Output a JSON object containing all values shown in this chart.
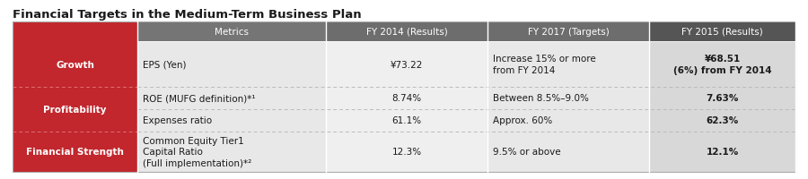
{
  "title": "Financial Targets in the Medium-Term Business Plan",
  "title_fontsize": 9.5,
  "bg_color": "#ffffff",
  "red_color": "#c1272d",
  "col1_header_color": "#757575",
  "col2_header_color": "#6d6d6d",
  "col3_header_color": "#6d6d6d",
  "col4_header_color": "#555555",
  "col1_bg": "#e8e8e8",
  "col2_bg": "#efefef",
  "col3_bg": "#e8e8e8",
  "col4_bg": "#d8d8d8",
  "dashed_color": "#bbbbbb",
  "columns_header": [
    "Metrics",
    "FY 2014 (Results)",
    "FY 2017 (Targets)",
    "FY 2015 (Results)"
  ],
  "label_groups": [
    {
      "label": "Growth",
      "rows": [
        0
      ]
    },
    {
      "label": "Profitability",
      "rows": [
        1,
        2
      ]
    },
    {
      "label": "Financial Strength",
      "rows": [
        3
      ]
    }
  ],
  "rows": [
    {
      "cells": [
        {
          "text": "EPS (Yen)",
          "align": "left",
          "bold": false,
          "size": 7.5
        },
        {
          "text": "¥73.22",
          "align": "center",
          "bold": false,
          "size": 7.5
        },
        {
          "text": "Increase 15% or more\nfrom FY 2014",
          "align": "left",
          "bold": false,
          "size": 7.5
        },
        {
          "text": "¥68.51\n(6%) from FY 2014",
          "align": "center",
          "bold": true,
          "size": 7.5
        }
      ]
    },
    {
      "cells": [
        {
          "text": "ROE (MUFG definition)*¹",
          "align": "left",
          "bold": false,
          "size": 7.5
        },
        {
          "text": "8.74%",
          "align": "center",
          "bold": false,
          "size": 7.5
        },
        {
          "text": "Between 8.5%–9.0%",
          "align": "left",
          "bold": false,
          "size": 7.5
        },
        {
          "text": "7.63%",
          "align": "center",
          "bold": true,
          "size": 7.5
        }
      ]
    },
    {
      "cells": [
        {
          "text": "Expenses ratio",
          "align": "left",
          "bold": false,
          "size": 7.5
        },
        {
          "text": "61.1%",
          "align": "center",
          "bold": false,
          "size": 7.5
        },
        {
          "text": "Approx. 60%",
          "align": "left",
          "bold": false,
          "size": 7.5
        },
        {
          "text": "62.3%",
          "align": "center",
          "bold": true,
          "size": 7.5
        }
      ]
    },
    {
      "cells": [
        {
          "text": "Common Equity Tier1\nCapital Ratio\n(Full implementation)*²",
          "align": "left",
          "bold": false,
          "size": 7.5
        },
        {
          "text": "12.3%",
          "align": "center",
          "bold": false,
          "size": 7.5
        },
        {
          "text": "9.5% or above",
          "align": "left",
          "bold": false,
          "size": 7.5
        },
        {
          "text": "12.1%",
          "align": "center",
          "bold": true,
          "size": 7.5
        }
      ]
    }
  ]
}
